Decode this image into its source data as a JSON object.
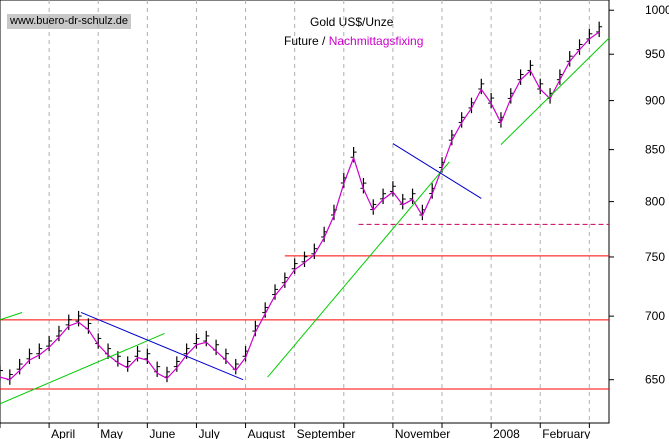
{
  "watermark": "www.buero-dr-schulz.de",
  "chart_data": {
    "type": "line",
    "title": "Gold US$/Unze",
    "legend": [
      {
        "name": "Future /",
        "color": "#000000",
        "style": "ohlc-bars"
      },
      {
        "name": "Nachmittagsfixing",
        "color": "#cc00cc",
        "style": "line"
      }
    ],
    "y_scale": "log",
    "ylim": [
      618,
      1012
    ],
    "y_ticks": [
      650,
      700,
      750,
      800,
      850,
      900,
      950,
      1000
    ],
    "x_months": [
      "April",
      "May",
      "June",
      "July",
      "August",
      "September",
      "November",
      "2008",
      "February"
    ],
    "x_month_index": [
      1,
      2,
      3,
      4,
      5,
      6,
      8,
      10,
      11
    ],
    "xlim_months": [
      0,
      12.4
    ],
    "grid": "vertical dashed",
    "series": [
      {
        "name": "Future /",
        "x": [
          0.0,
          0.2,
          0.4,
          0.6,
          0.8,
          1.0,
          1.2,
          1.4,
          1.6,
          1.8,
          2.0,
          2.2,
          2.4,
          2.6,
          2.8,
          3.0,
          3.2,
          3.4,
          3.6,
          3.8,
          4.0,
          4.2,
          4.4,
          4.6,
          4.8,
          5.0,
          5.2,
          5.4,
          5.6,
          5.8,
          6.0,
          6.2,
          6.4,
          6.6,
          6.8,
          7.0,
          7.2,
          7.4,
          7.6,
          7.8,
          8.0,
          8.2,
          8.4,
          8.6,
          8.8,
          9.0,
          9.2,
          9.4,
          9.6,
          9.8,
          10.0,
          10.2,
          10.4,
          10.6,
          10.8,
          11.0,
          11.2,
          11.4,
          11.6,
          11.8,
          12.0,
          12.2
        ],
        "y": [
          655,
          652,
          660,
          668,
          672,
          678,
          686,
          695,
          698,
          692,
          680,
          672,
          666,
          662,
          670,
          668,
          658,
          654,
          662,
          672,
          680,
          682,
          675,
          668,
          660,
          670,
          690,
          705,
          720,
          730,
          742,
          748,
          755,
          770,
          790,
          820,
          845,
          815,
          795,
          805,
          812,
          800,
          805,
          790,
          810,
          835,
          862,
          880,
          895,
          915,
          900,
          880,
          905,
          925,
          935,
          915,
          905,
          925,
          945,
          958,
          970,
          978
        ]
      },
      {
        "name": "Nachmittagsfixing",
        "x": [
          0.0,
          0.2,
          0.4,
          0.6,
          0.8,
          1.0,
          1.2,
          1.4,
          1.6,
          1.8,
          2.0,
          2.2,
          2.4,
          2.6,
          2.8,
          3.0,
          3.2,
          3.4,
          3.6,
          3.8,
          4.0,
          4.2,
          4.4,
          4.6,
          4.8,
          5.0,
          5.2,
          5.4,
          5.6,
          5.8,
          6.0,
          6.2,
          6.4,
          6.6,
          6.8,
          7.0,
          7.2,
          7.4,
          7.6,
          7.8,
          8.0,
          8.2,
          8.4,
          8.6,
          8.8,
          9.0,
          9.2,
          9.4,
          9.6,
          9.8,
          10.0,
          10.2,
          10.4,
          10.6,
          10.8,
          11.0,
          11.2,
          11.4,
          11.6,
          11.8,
          12.0,
          12.2
        ],
        "y": [
          652,
          650,
          657,
          665,
          669,
          675,
          683,
          692,
          695,
          689,
          677,
          669,
          663,
          659,
          667,
          665,
          655,
          651,
          659,
          669,
          677,
          679,
          672,
          665,
          657,
          667,
          687,
          702,
          717,
          727,
          739,
          745,
          752,
          767,
          787,
          817,
          842,
          812,
          792,
          802,
          809,
          797,
          802,
          787,
          807,
          832,
          859,
          877,
          892,
          912,
          897,
          877,
          902,
          922,
          932,
          912,
          902,
          922,
          942,
          955,
          967,
          975
        ]
      }
    ],
    "horizontal_lines": [
      {
        "y": 643,
        "color": "#ff0000",
        "style": "solid",
        "from_month": 0,
        "to_month": 12.4
      },
      {
        "y": 697,
        "color": "#ff0000",
        "style": "solid",
        "from_month": 0,
        "to_month": 12.4
      },
      {
        "y": 751,
        "color": "#ff0000",
        "style": "solid",
        "from_month": 5.8,
        "to_month": 12.4
      },
      {
        "y": 779,
        "color": "#cc0066",
        "style": "dashed",
        "from_month": 7.3,
        "to_month": 12.4
      }
    ],
    "trend_lines": [
      {
        "color": "#00cc00",
        "points": [
          [
            0.0,
            632
          ],
          [
            3.35,
            686
          ]
        ]
      },
      {
        "color": "#00cc00",
        "points": [
          [
            0.0,
            697
          ],
          [
            0.45,
            703
          ]
        ]
      },
      {
        "color": "#00cc00",
        "points": [
          [
            5.45,
            652
          ],
          [
            9.15,
            838
          ]
        ]
      },
      {
        "color": "#00cc00",
        "points": [
          [
            10.2,
            855
          ],
          [
            12.4,
            968
          ]
        ]
      },
      {
        "color": "#0000cc",
        "points": [
          [
            1.65,
            703
          ],
          [
            4.95,
            650
          ]
        ]
      },
      {
        "color": "#0000cc",
        "points": [
          [
            8.0,
            856
          ],
          [
            9.8,
            803
          ]
        ]
      }
    ]
  }
}
